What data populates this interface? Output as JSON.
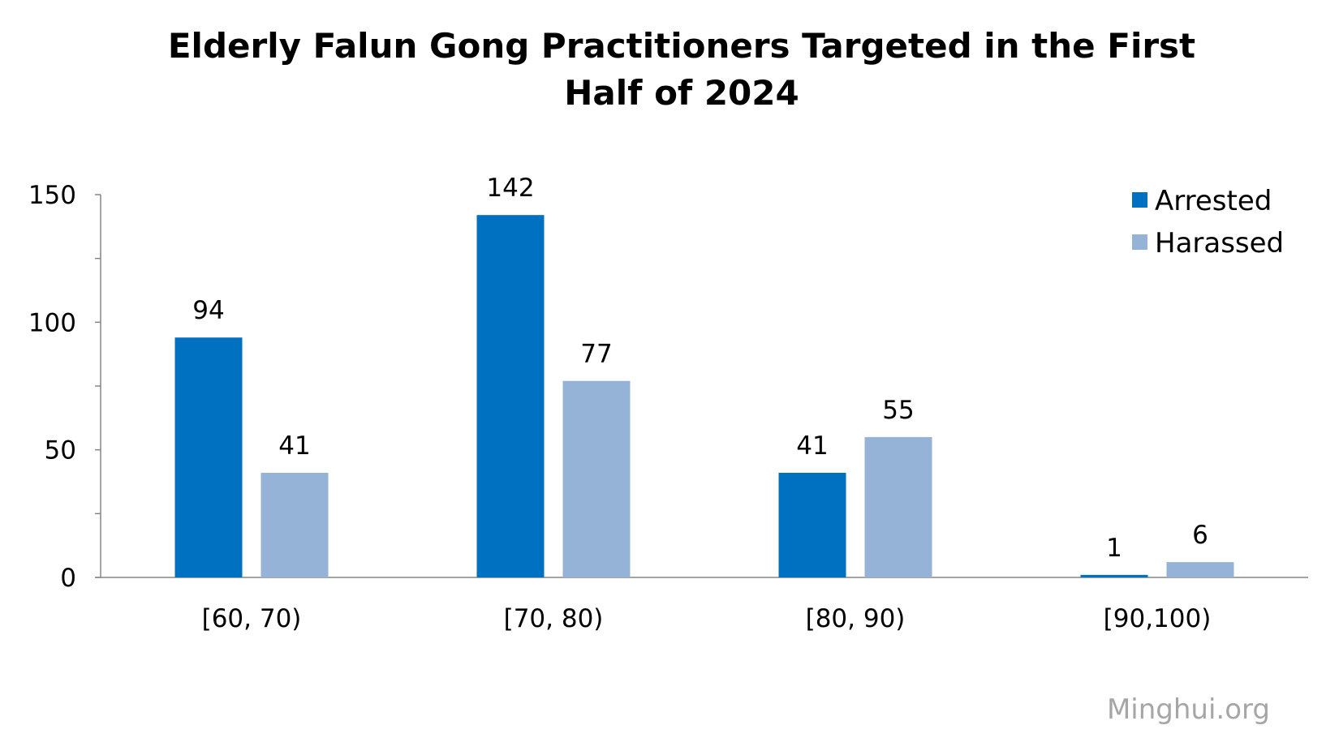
{
  "title_lines": [
    "Elderly Falun Gong Practitioners Targeted in the First",
    "Half of 2024"
  ],
  "watermark": "Minghui.org",
  "chart_data": {
    "type": "bar",
    "title": "Elderly Falun Gong Practitioners Targeted in the First Half of 2024",
    "categories": [
      "[60, 70)",
      "[70, 80)",
      "[80, 90)",
      "[90,100)"
    ],
    "series": [
      {
        "name": "Arrested",
        "values": [
          94,
          142,
          41,
          1
        ],
        "color": "#0070c0"
      },
      {
        "name": "Harassed",
        "values": [
          41,
          77,
          55,
          6
        ],
        "color": "#95b3d7"
      }
    ],
    "xlabel": "",
    "ylabel": "",
    "ylim": [
      0,
      150
    ],
    "yticks": [
      0,
      50,
      100,
      150
    ],
    "grid": false,
    "data_labels": true,
    "legend_position": "top-right"
  }
}
